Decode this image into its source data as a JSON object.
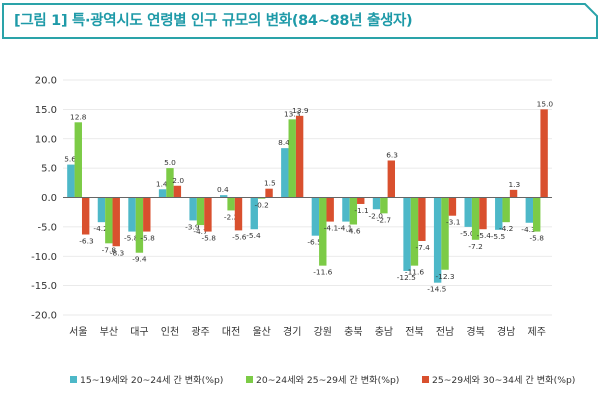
{
  "figure_title": "[그림 1] 특·광역시도 연령별 인구 규모의 변화(84~88년 출생자)",
  "colors": {
    "frame": "#2aa3a9",
    "series": [
      "#4db8c8",
      "#7ccb46",
      "#d9502e"
    ],
    "zero_line": "#666666",
    "grid": "#e3e3e3"
  },
  "chart_data": {
    "type": "bar",
    "title": "[그림 1] 특·광역시도 연령별 인구 규모의 변화(84~88년 출생자)",
    "xlabel": "",
    "ylabel": "",
    "ylim": [
      -20,
      20
    ],
    "y_ticks": [
      "20.0",
      "15.0",
      "10.0",
      "5.0",
      "0.0",
      "-5.0",
      "-10.0",
      "-15.0",
      "-20.0"
    ],
    "y_tick_values": [
      20,
      15,
      10,
      5,
      0,
      -5,
      -10,
      -15,
      -20
    ],
    "grid": true,
    "legend_position": "bottom",
    "categories": [
      "서울",
      "부산",
      "대구",
      "인천",
      "광주",
      "대전",
      "울산",
      "경기",
      "강원",
      "충북",
      "충남",
      "전북",
      "전남",
      "경북",
      "경남",
      "제주"
    ],
    "series": [
      {
        "name": "15~19세와 20~24세 간 변화(%p)",
        "values": [
          5.6,
          -4.2,
          -5.8,
          1.4,
          -3.9,
          0.4,
          -5.4,
          8.4,
          -6.5,
          -4.1,
          -2.0,
          -12.5,
          -14.5,
          -5.0,
          -5.5,
          -4.3
        ],
        "labels": [
          "5.6",
          "-4.2",
          "-5.8",
          "1.4",
          "-3.9",
          "0.4",
          "-5.4",
          "8.4",
          "-6.5",
          "-4.1",
          "-2.0",
          "-12.5",
          "-14.5",
          "-5.0",
          "-5.5",
          "-4.3"
        ]
      },
      {
        "name": "20~24세와 25~29세 간 변화(%p)",
        "values": [
          12.8,
          -7.8,
          -9.4,
          5.0,
          -4.7,
          -2.2,
          -0.2,
          13.3,
          -11.6,
          -4.6,
          -2.7,
          -11.6,
          -12.3,
          -7.2,
          -4.2,
          -5.8
        ],
        "labels": [
          "12.8",
          "-7.8",
          "-9.4",
          "5.0",
          "-4.7",
          "-2.2",
          "-0.2",
          "13.3",
          "-11.6",
          "-4.6",
          "-2.7",
          "-11.6",
          "-12.3",
          "-7.2",
          "-4.2",
          "-5.8"
        ]
      },
      {
        "name": "25~29세와 30~34세 간 변화(%p)",
        "values": [
          -6.3,
          -8.3,
          -5.8,
          2.0,
          -5.8,
          -5.6,
          1.5,
          13.9,
          -4.1,
          -1.1,
          6.3,
          -7.4,
          -3.1,
          -5.4,
          1.3,
          15.0
        ],
        "labels": [
          "-6.3",
          "-8.3",
          "-5.8",
          "2.0",
          "-5.8",
          "-5.6",
          "1.5",
          "13.9",
          "-4.1",
          "-1.1",
          "6.3",
          "-7.4",
          "-3.1",
          "-5.4",
          "1.3",
          "15.0"
        ]
      }
    ]
  }
}
